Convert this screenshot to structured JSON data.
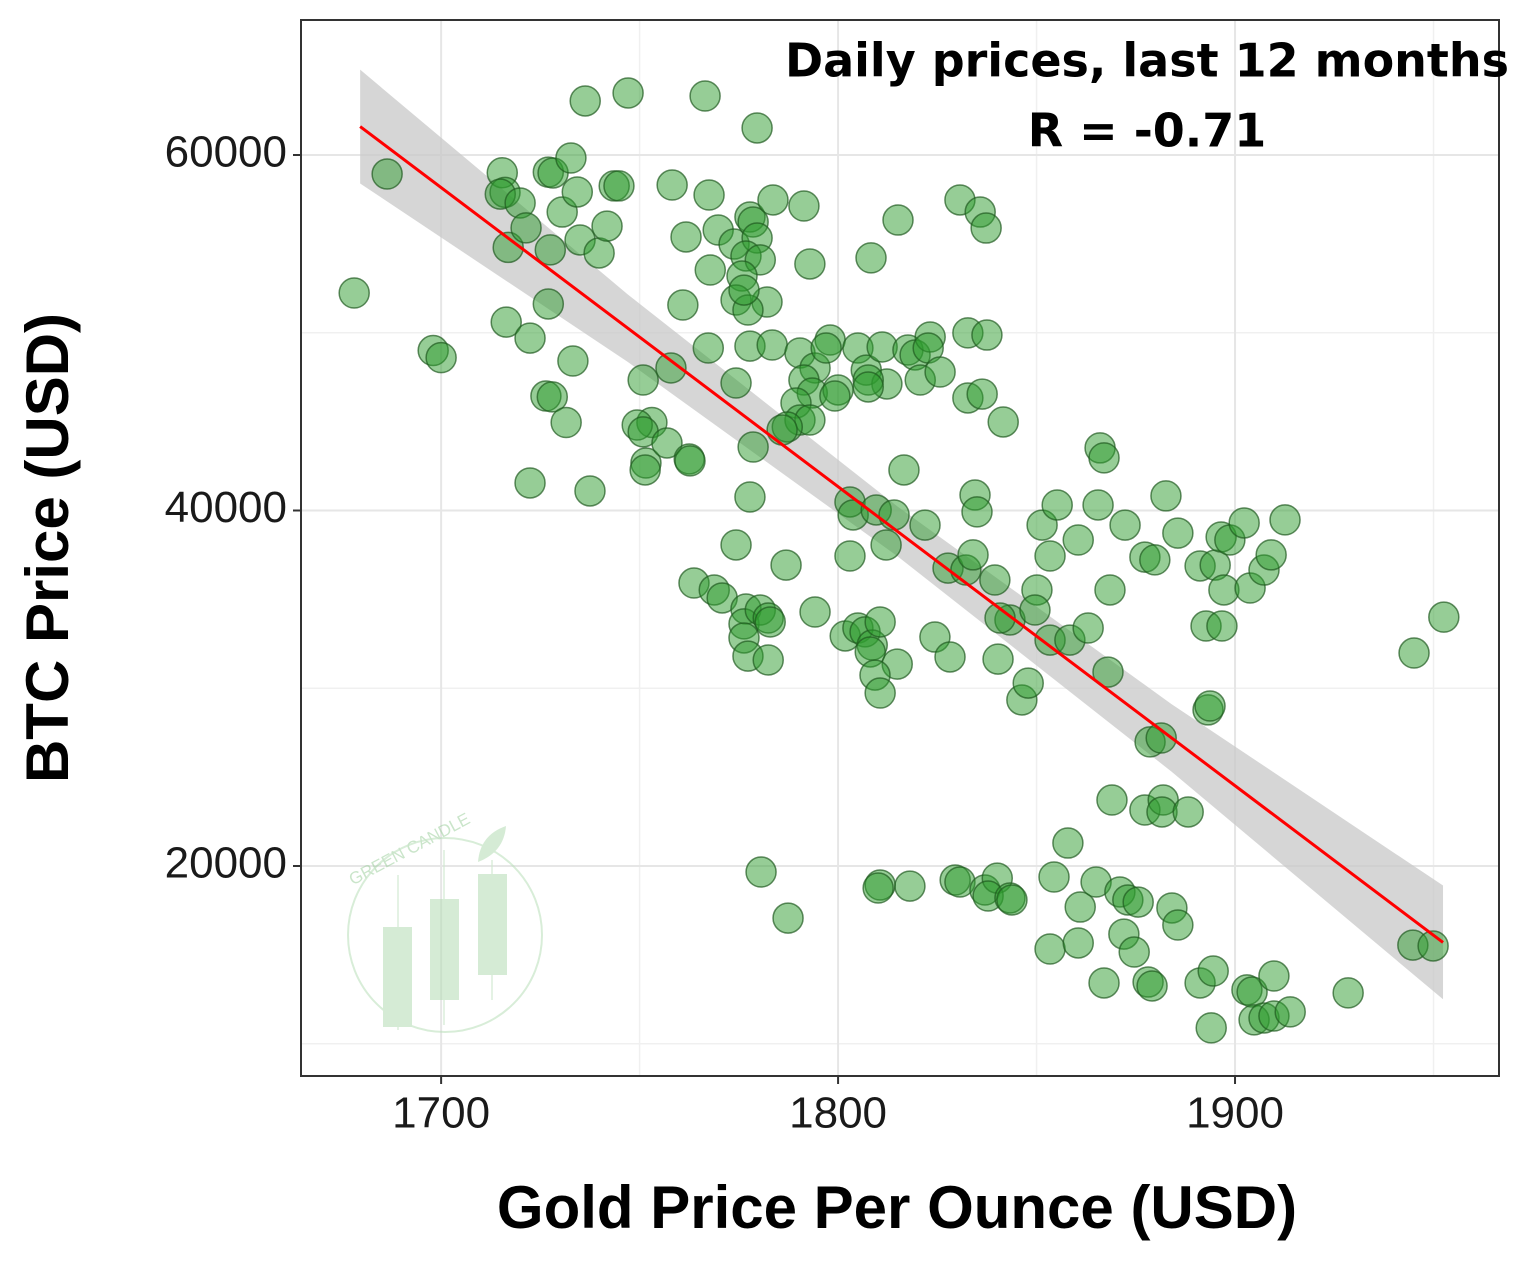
{
  "chart_data": {
    "type": "scatter",
    "annotations": [
      "Daily prices, last 12 months",
      "R = -0.71"
    ],
    "x_label": "Gold Price Per Ounce (USD)",
    "y_label": "BTC Price (USD)",
    "watermark": "GREEN CANDLE",
    "xlim": [
      1664.7,
      1966.5
    ],
    "ylim": [
      8185,
      67595
    ],
    "xticks": [
      1700,
      1800,
      1900
    ],
    "yticks": [
      20000,
      40000,
      60000
    ],
    "xminor": [
      1750,
      1850,
      1950
    ],
    "yminor": [
      10000,
      30000,
      50000
    ],
    "grid": true,
    "color": "#2e9b2e",
    "x": [
      1678.1,
      1686.4,
      1698,
      1700,
      1715.4,
      1716.1,
      1714.9,
      1716.9,
      1719.9,
      1721.4,
      1716.4,
      1722.4,
      1727.0,
      1728.2,
      1727.0,
      1727.5,
      1730.5,
      1732.7,
      1734.3,
      1735.0,
      1739.8,
      1741.8,
      1733.2,
      1726.4,
      1728.0,
      1731.5,
      1722.4,
      1737.5,
      1736.3,
      1747.1,
      1766.5,
      1779.6,
      1743.6,
      1744.8,
      1758.2,
      1767.5,
      1769.8,
      1761.7,
      1773.8,
      1777.8,
      1778.6,
      1779.6,
      1776.8,
      1780.4,
      1775.8,
      1782.1,
      1774.3,
      1777.3,
      1776.3,
      1760.9,
      1767.8,
      1783.6,
      1791.4,
      1792.9,
      1767.3,
      1777.8,
      1774.3,
      1757.9,
      1750.9,
      1753.1,
      1749.4,
      1750.9,
      1751.6,
      1751.4,
      1756.9,
      1762.5,
      1762.7,
      1778.6,
      1777.8,
      1774.3,
      1763.7,
      1768.8,
      1770.8,
      1776.8,
      1776.3,
      1780.4,
      1782.4,
      1782.9,
      1776.3,
      1777.3,
      1782.4,
      1780.6,
      1787.4,
      1783.4,
      1790.4,
      1794.2,
      1798.0,
      1797.0,
      1805.0,
      1807.1,
      1811.1,
      1812.3,
      1807.6,
      1817.6,
      1819.4,
      1820.7,
      1823.2,
      1822.7,
      1825.7,
      1791.4,
      1793.5,
      1800.0,
      1799.2,
      1789.4,
      1790.4,
      1792.9,
      1787.2,
      1785.9,
      1832.7,
      1837.5,
      1832.7,
      1836.3,
      1841.6,
      1807.6,
      1808.3,
      1815.1,
      1830.7,
      1835.8,
      1837.3,
      1803.0,
      1803.8,
      1803.0,
      1809.6,
      1812.1,
      1814.1,
      1816.6,
      1821.9,
      1827.7,
      1832.2,
      1834.5,
      1835.0,
      1834.0,
      1839.5,
      1843.3,
      1846.3,
      1851.4,
      1855.2,
      1853.4,
      1850.1,
      1849.6,
      1853.4,
      1858.4,
      1860.5,
      1863.0,
      1868.0,
      1868.5,
      1865.5,
      1872.3,
      1877.3,
      1879.8,
      1882.6,
      1885.6,
      1891.2,
      1895.0,
      1896.5,
      1898.7,
      1902.3,
      1892.7,
      1896.7,
      1897.2,
      1903.8,
      1907.3,
      1909.1,
      1912.6,
      1893.2,
      1893.7,
      1866.0,
      1867.0,
      1878.6,
      1881.4,
      1945.1,
      1952.6,
      1944.8,
      1949.9,
      1786.9,
      1794.2,
      1801.8,
      1805.0,
      1806.8,
      1808.6,
      1808.1,
      1810.6,
      1814.9,
      1809.3,
      1810.6,
      1824.4,
      1828.2,
      1840.3,
      1847.9,
      1840.8,
      1810.6,
      1810.1,
      1818.1,
      1829.5,
      1830.7,
      1837.0,
      1840.1,
      1837.8,
      1843.3,
      1843.8,
      1854.4,
      1857.9,
      1861.0,
      1865.0,
      1871.0,
      1873.0,
      1872.0,
      1874.6,
      1853.4,
      1860.5,
      1867.0,
      1878.1,
      1879.1,
      1869.0,
      1877.3,
      1881.9,
      1881.6,
      1888.2,
      1884.1,
      1885.6,
      1891.2,
      1894.5,
      1894.0,
      1903.0,
      1904.3,
      1909.8,
      1904.8,
      1907.3,
      1909.8,
      1913.9,
      1928.5,
      1875.6
    ],
    "y": [
      52236,
      58930,
      49000,
      48600,
      59000,
      57900,
      57800,
      54800,
      57300,
      55900,
      50600,
      49700,
      59040,
      58990,
      51620,
      54660,
      56790,
      59830,
      57920,
      55220,
      54490,
      56000,
      48410,
      46440,
      46390,
      44950,
      41550,
      41100,
      63040,
      63490,
      63320,
      61520,
      58260,
      58260,
      58310,
      57750,
      55780,
      55390,
      54990,
      56510,
      56230,
      55330,
      54320,
      54100,
      53190,
      51730,
      51840,
      51280,
      52400,
      51560,
      53530,
      57470,
      57130,
      53870,
      49140,
      49250,
      47170,
      48020,
      47340,
      44950,
      44810,
      44420,
      42670,
      42280,
      43800,
      42900,
      42790,
      43570,
      40760,
      38060,
      35920,
      35530,
      35080,
      34460,
      33620,
      34400,
      33950,
      33730,
      32830,
      31810,
      31590,
      19660,
      17070,
      49310,
      48860,
      48020,
      49590,
      49140,
      49140,
      47900,
      49200,
      47120,
      47340,
      49030,
      48750,
      47340,
      49760,
      49140,
      47790,
      47340,
      46610,
      46780,
      46440,
      46050,
      45090,
      45090,
      44700,
      44530,
      49990,
      49870,
      46330,
      46550,
      44980,
      46950,
      54210,
      56340,
      57470,
      56790,
      55890,
      40480,
      39750,
      37440,
      40030,
      38060,
      39750,
      42280,
      39180,
      36760,
      36650,
      40870,
      39920,
      37500,
      36090,
      33840,
      29340,
      39180,
      40310,
      37440,
      35530,
      34400,
      32710,
      32710,
      38340,
      33390,
      30910,
      35530,
      40310,
      39180,
      37380,
      37220,
      40820,
      38730,
      36880,
      36930,
      38510,
      38340,
      39300,
      33500,
      33500,
      35530,
      35640,
      36650,
      37500,
      39470,
      28780,
      29000,
      43520,
      42960,
      26980,
      27200,
      31980,
      34000,
      15550,
      15500,
      36930,
      34290,
      32940,
      33390,
      33170,
      32430,
      32040,
      33730,
      31360,
      30740,
      29730,
      32880,
      31760,
      31640,
      30290,
      33950,
      18930,
      18760,
      18870,
      19210,
      19100,
      18650,
      19320,
      18310,
      18200,
      18090,
      19380,
      21290,
      17690,
      19100,
      18540,
      18090,
      16170,
      15160,
      15330,
      15670,
      13420,
      13470,
      13250,
      23710,
      23150,
      23710,
      23040,
      23040,
      17640,
      16680,
      13420,
      14090,
      10890,
      13030,
      12910,
      13810,
      11340,
      11450,
      11560,
      11790,
      12860,
      17970
    ],
    "fit_line": {
      "color": "#ff0000",
      "x": [
        1679.6,
        1952.4
      ],
      "y": [
        61600,
        15700
      ]
    },
    "band": {
      "color": "#c8c8c8",
      "x": [
        1679.6,
        1747,
        1815,
        1884,
        1952.4
      ],
      "upper": [
        64800,
        52160,
        40220,
        29110,
        18900
      ],
      "lower": [
        58400,
        48360,
        37420,
        25310,
        12500
      ]
    }
  }
}
